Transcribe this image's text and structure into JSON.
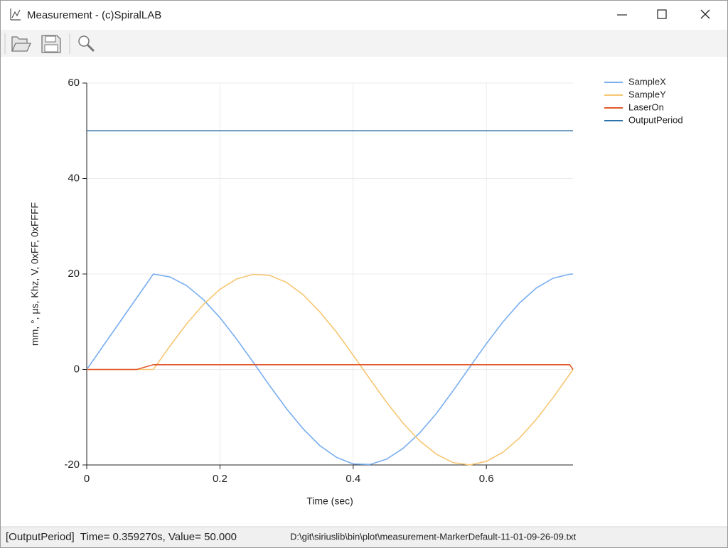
{
  "window": {
    "title": "Measurement - (c)SpiralLAB"
  },
  "status": {
    "message": "[OutputPeriod]  Time= 0.359270s, Value= 50.000",
    "file": "D:\\git\\siriuslib\\bin\\plot\\measurement-MarkerDefault-11-01-09-26-09.txt"
  },
  "chart_data": {
    "type": "line",
    "x_label": "Time (sec)",
    "y_label": "mm, °, µs, Khz, V, 0xFF, 0xFFFF",
    "x": [
      0,
      0.025,
      0.05,
      0.075,
      0.1,
      0.125,
      0.15,
      0.175,
      0.2,
      0.225,
      0.25,
      0.275,
      0.3,
      0.325,
      0.35,
      0.375,
      0.4,
      0.425,
      0.45,
      0.475,
      0.5,
      0.525,
      0.55,
      0.575,
      0.6,
      0.625,
      0.65,
      0.675,
      0.7,
      0.725,
      0.73
    ],
    "series": [
      {
        "name": "SampleX",
        "color": "#79aef0",
        "values": [
          0,
          5,
          10,
          15,
          20,
          19.38,
          17.56,
          14.66,
          10.85,
          6.37,
          1.49,
          -3.47,
          -8.23,
          -12.46,
          -15.96,
          -18.41,
          -19.78,
          -19.9,
          -18.79,
          -16.52,
          -13.26,
          -9.2,
          -4.45,
          0.5,
          5.42,
          10,
          13.96,
          17.07,
          19.11,
          19.96,
          20
        ]
      },
      {
        "name": "SampleY",
        "color": "#f6c672",
        "values": [
          0,
          0,
          0,
          0,
          0,
          4.93,
          9.56,
          13.6,
          16.8,
          18.96,
          19.94,
          19.7,
          18.23,
          15.64,
          12.05,
          7.81,
          2.98,
          -1.99,
          -6.84,
          -11.27,
          -14.97,
          -17.76,
          -19.5,
          -19.99,
          -19.25,
          -17.32,
          -14.32,
          -10.43,
          -5.9,
          -1,
          0
        ]
      },
      {
        "name": "LaserOn",
        "color": "#e2582b",
        "values": [
          0,
          0,
          0,
          0,
          1,
          1,
          1,
          1,
          1,
          1,
          1,
          1,
          1,
          1,
          1,
          1,
          1,
          1,
          1,
          1,
          1,
          1,
          1,
          1,
          1,
          1,
          1,
          1,
          1,
          1,
          0
        ]
      },
      {
        "name": "OutputPeriod",
        "color": "#2d72a8",
        "values": [
          50,
          50,
          50,
          50,
          50,
          50,
          50,
          50,
          50,
          50,
          50,
          50,
          50,
          50,
          50,
          50,
          50,
          50,
          50,
          50,
          50,
          50,
          50,
          50,
          50,
          50,
          50,
          50,
          50,
          50,
          50
        ]
      }
    ],
    "xlim": [
      0,
      0.73
    ],
    "xticks": [
      0,
      0.2,
      0.4,
      0.6
    ],
    "ylim": [
      -20,
      60
    ],
    "yticks": [
      -20,
      0,
      20,
      40,
      60
    ],
    "grid": true,
    "legend": "outside-right"
  }
}
